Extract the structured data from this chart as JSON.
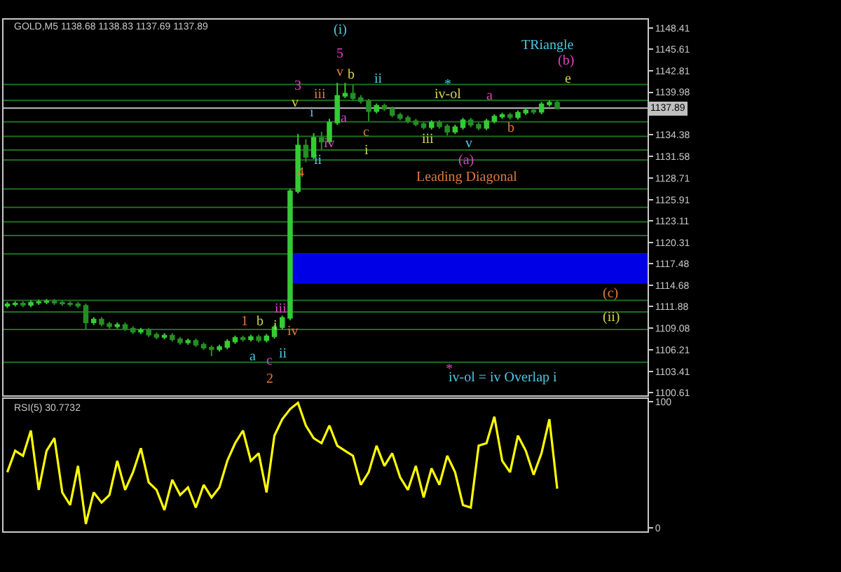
{
  "chart_data": [
    {
      "type": "candlestick",
      "categories": [
        null,
        null,
        null,
        null,
        null,
        null,
        null,
        null,
        null,
        null,
        null,
        null,
        null,
        null,
        null,
        null,
        null,
        null,
        null,
        null,
        null,
        null,
        null,
        null,
        null,
        null,
        null,
        null,
        null,
        null,
        null,
        null,
        null,
        null,
        null,
        null,
        null,
        null,
        null,
        null,
        null,
        null,
        null,
        null,
        null,
        null,
        null,
        null,
        null,
        null,
        null,
        null,
        null,
        null,
        null,
        null,
        null,
        null,
        null,
        null,
        null,
        null,
        null,
        null,
        null,
        null,
        null,
        null,
        null,
        null,
        null,
        null,
        null,
        null,
        null,
        null,
        null,
        null,
        null,
        null,
        null,
        null
      ],
      "tick_labels": "y",
      "grid": false,
      "ylim": [
        1100.3,
        1149.5
      ],
      "yticks": [
        1100.61,
        1103.41,
        1106.21,
        1109.08,
        1111.88,
        1114.68,
        1117.48,
        1120.31,
        1123.11,
        1125.91,
        1128.71,
        1131.58,
        1134.38,
        1139.98,
        1142.81,
        1145.61,
        1148.41
      ],
      "series": [
        {
          "colors": [
            "#32cd32",
            "#32cd32",
            "#238f23",
            "#32cd32",
            "#32cd32",
            "#32cd32",
            "#238f23",
            "#238f23",
            "#238f23",
            "#238f23",
            "#238f23",
            "#32cd32",
            "#238f23",
            "#238f23",
            "#32cd32",
            "#238f23",
            "#238f23",
            "#32cd32",
            "#238f23",
            "#238f23",
            "#32cd32",
            "#238f23",
            "#238f23",
            "#32cd32",
            "#238f23",
            "#238f23",
            "#238f23",
            "#32cd32",
            "#32cd32",
            "#32cd32",
            "#238f23",
            "#32cd32",
            "#238f23",
            "#32cd32",
            "#32cd32",
            "#32cd32",
            "#32cd32",
            "#32cd32",
            "#238f23",
            "#32cd32",
            "#238f23",
            "#32cd32",
            "#32cd32",
            "#32cd32",
            "#238f23",
            "#238f23",
            "#238f23",
            "#32cd32",
            "#238f23",
            "#238f23",
            "#238f23",
            "#238f23",
            "#238f23",
            "#238f23",
            "#32cd32",
            "#238f23",
            "#238f23",
            "#32cd32",
            "#32cd32",
            "#238f23",
            "#238f23",
            "#32cd32",
            "#32cd32",
            "#32cd32",
            "#238f23",
            "#32cd32",
            "#32cd32",
            "#238f23",
            "#32cd32",
            "#32cd32",
            "#238f23",
            null,
            null,
            null,
            null,
            null,
            null,
            null,
            null,
            null,
            null,
            null
          ],
          "ohlc": [
            [
              1112.0,
              1112.5,
              1111.7,
              1112.2
            ],
            [
              1112.2,
              1112.6,
              1111.9,
              1112.3
            ],
            [
              1112.3,
              1112.6,
              1111.8,
              1112.1
            ],
            [
              1112.1,
              1112.7,
              1111.8,
              1112.4
            ],
            [
              1112.4,
              1112.8,
              1112.1,
              1112.5
            ],
            [
              1112.5,
              1112.9,
              1112.2,
              1112.6
            ],
            [
              1112.6,
              1112.9,
              1112.1,
              1112.4
            ],
            [
              1112.4,
              1112.7,
              1112.0,
              1112.3
            ],
            [
              1112.3,
              1112.6,
              1111.9,
              1112.2
            ],
            [
              1112.2,
              1112.5,
              1111.7,
              1112.0
            ],
            [
              1112.0,
              1112.3,
              1108.9,
              1109.8
            ],
            [
              1109.8,
              1110.5,
              1109.5,
              1110.2
            ],
            [
              1110.2,
              1110.5,
              1109.3,
              1109.6
            ],
            [
              1109.6,
              1109.9,
              1109.0,
              1109.3
            ],
            [
              1109.3,
              1109.8,
              1109.0,
              1109.5
            ],
            [
              1109.5,
              1109.8,
              1108.7,
              1109.0
            ],
            [
              1109.0,
              1109.3,
              1108.3,
              1108.6
            ],
            [
              1108.6,
              1109.1,
              1108.3,
              1108.8
            ],
            [
              1108.8,
              1109.1,
              1107.9,
              1108.2
            ],
            [
              1108.2,
              1108.5,
              1107.6,
              1107.9
            ],
            [
              1107.9,
              1108.4,
              1107.6,
              1108.1
            ],
            [
              1108.1,
              1108.4,
              1107.3,
              1107.6
            ],
            [
              1107.6,
              1107.9,
              1106.9,
              1107.2
            ],
            [
              1107.2,
              1107.7,
              1106.9,
              1107.4
            ],
            [
              1107.4,
              1107.7,
              1106.6,
              1106.9
            ],
            [
              1106.9,
              1107.2,
              1106.2,
              1106.5
            ],
            [
              1106.5,
              1106.8,
              1105.4,
              1106.3
            ],
            [
              1106.3,
              1106.9,
              1106.0,
              1106.6
            ],
            [
              1106.6,
              1107.6,
              1106.3,
              1107.3
            ],
            [
              1107.3,
              1108.1,
              1107.0,
              1107.8
            ],
            [
              1107.8,
              1108.1,
              1107.3,
              1107.6
            ],
            [
              1107.6,
              1108.2,
              1107.3,
              1107.9
            ],
            [
              1107.9,
              1108.2,
              1107.2,
              1107.5
            ],
            [
              1107.5,
              1108.3,
              1107.2,
              1108.0
            ],
            [
              1108.0,
              1109.5,
              1107.7,
              1109.2
            ],
            [
              1109.2,
              1110.7,
              1108.9,
              1110.4
            ],
            [
              1110.4,
              1127.3,
              1110.1,
              1127.0
            ],
            [
              1127.0,
              1134.5,
              1126.7,
              1133.0
            ],
            [
              1133.0,
              1133.8,
              1130.8,
              1131.5
            ],
            [
              1131.5,
              1134.6,
              1131.2,
              1134.0
            ],
            [
              1134.0,
              1134.8,
              1132.5,
              1133.5
            ],
            [
              1133.5,
              1136.5,
              1133.2,
              1136.0
            ],
            [
              1136.0,
              1141.2,
              1135.7,
              1139.5
            ],
            [
              1139.5,
              1141.2,
              1139.2,
              1139.8
            ],
            [
              1139.8,
              1141.0,
              1138.9,
              1139.2
            ],
            [
              1139.2,
              1139.6,
              1138.5,
              1138.8
            ],
            [
              1138.8,
              1139.1,
              1136.2,
              1137.5
            ],
            [
              1137.5,
              1138.5,
              1137.2,
              1138.2
            ],
            [
              1138.2,
              1138.5,
              1137.5,
              1137.8
            ],
            [
              1137.8,
              1138.1,
              1136.7,
              1137.0
            ],
            [
              1137.0,
              1137.3,
              1136.3,
              1136.6
            ],
            [
              1136.6,
              1136.9,
              1135.9,
              1136.2
            ],
            [
              1136.2,
              1136.5,
              1135.5,
              1135.8
            ],
            [
              1135.8,
              1136.1,
              1135.1,
              1135.4
            ],
            [
              1135.4,
              1136.3,
              1135.1,
              1136.0
            ],
            [
              1136.0,
              1136.3,
              1135.2,
              1135.5
            ],
            [
              1135.5,
              1135.8,
              1134.3,
              1134.8
            ],
            [
              1134.8,
              1135.7,
              1134.5,
              1135.4
            ],
            [
              1135.4,
              1136.6,
              1135.1,
              1136.3
            ],
            [
              1136.3,
              1136.6,
              1135.4,
              1135.7
            ],
            [
              1135.7,
              1136.0,
              1135.0,
              1135.3
            ],
            [
              1135.3,
              1136.5,
              1135.0,
              1136.2
            ],
            [
              1136.2,
              1137.1,
              1135.9,
              1136.8
            ],
            [
              1136.8,
              1137.3,
              1136.5,
              1137.0
            ],
            [
              1137.0,
              1137.3,
              1136.4,
              1136.7
            ],
            [
              1136.7,
              1137.6,
              1136.4,
              1137.3
            ],
            [
              1137.3,
              1137.9,
              1137.0,
              1137.6
            ],
            [
              1137.6,
              1137.9,
              1137.1,
              1137.4
            ],
            [
              1137.4,
              1138.7,
              1137.1,
              1138.4
            ],
            [
              1138.4,
              1138.9,
              1138.1,
              1138.6
            ],
            [
              1138.6,
              1138.9,
              1137.7,
              1137.9
            ],
            null,
            null,
            null,
            null,
            null,
            null,
            null,
            null,
            null,
            null,
            null
          ]
        }
      ],
      "ref_lines": [
        {
          "axis": "y",
          "value": 1137.89,
          "label": "1137.89",
          "color": "#c0c0c0"
        },
        {
          "axis": "y",
          "value": 1141.0,
          "color": "#1f6f1f"
        },
        {
          "axis": "y",
          "value": 1138.9,
          "color": "#1f6f1f"
        },
        {
          "axis": "y",
          "value": 1136.1,
          "color": "#1f6f1f"
        },
        {
          "axis": "y",
          "value": 1134.2,
          "color": "#1f6f1f"
        },
        {
          "axis": "y",
          "value": 1132.4,
          "color": "#1f6f1f"
        },
        {
          "axis": "y",
          "value": 1131.1,
          "color": "#1f6f1f"
        },
        {
          "axis": "y",
          "value": 1127.3,
          "color": "#1f6f1f"
        },
        {
          "axis": "y",
          "value": 1124.9,
          "color": "#1f6f1f"
        },
        {
          "axis": "y",
          "value": 1123.0,
          "color": "#1f6f1f"
        },
        {
          "axis": "y",
          "value": 1121.2,
          "color": "#1f6f1f"
        },
        {
          "axis": "y",
          "value": 1118.8,
          "color": "#1f6f1f"
        },
        {
          "axis": "y",
          "value": 1112.7,
          "color": "#1f6f1f"
        },
        {
          "axis": "y",
          "value": 1111.2,
          "color": "#1f6f1f"
        },
        {
          "axis": "y",
          "value": 1108.9,
          "color": "#1f6f1f"
        },
        {
          "axis": "y",
          "value": 1104.6,
          "color": "#1f6f1f"
        }
      ],
      "bands": [
        {
          "axis": "y",
          "from": 1114.9,
          "to": 1118.9,
          "color": "#0000ff"
        }
      ],
      "annotations": [
        "GOLD,M5 1138.68 1138.83 1137.69 1137.89",
        "(i)",
        "5",
        "v",
        "b",
        "ii",
        "3",
        "iii",
        "v",
        "i",
        "a",
        "c",
        "i",
        "ii",
        "iv",
        "4",
        "iii",
        "v",
        "(a)",
        "Leading Diagonal",
        "iv-ol",
        "*",
        "a",
        "b",
        "e",
        "TRiangle",
        "(b)",
        "(c)",
        "(ii)",
        "iv-ol = iv Overlap i",
        "*",
        "1",
        "b",
        "a",
        "c",
        "2",
        "i",
        "ii",
        "iii",
        "iv"
      ]
    },
    {
      "type": "line",
      "categories": [
        null,
        null,
        null,
        null,
        null,
        null,
        null,
        null,
        null,
        null,
        null,
        null,
        null,
        null,
        null,
        null,
        null,
        null,
        null,
        null,
        null,
        null,
        null,
        null,
        null,
        null,
        null,
        null,
        null,
        null,
        null,
        null,
        null,
        null,
        null,
        null,
        null,
        null,
        null,
        null,
        null,
        null,
        null,
        null,
        null,
        null,
        null,
        null,
        null,
        null,
        null,
        null,
        null,
        null,
        null,
        null,
        null,
        null,
        null,
        null,
        null,
        null,
        null,
        null,
        null,
        null,
        null,
        null,
        null,
        null,
        null,
        null,
        null,
        null,
        null,
        null,
        null,
        null,
        null,
        null,
        null,
        null
      ],
      "tick_labels": "y",
      "grid": false,
      "ylim": [
        -3,
        102
      ],
      "yticks": [
        0,
        100
      ],
      "series": [
        {
          "color": "#ffff00",
          "values": [
            44,
            61,
            57,
            77,
            30,
            61,
            71,
            28,
            18,
            49,
            3,
            28,
            20,
            26,
            53,
            30,
            44,
            63,
            36,
            30,
            14,
            38,
            26,
            32,
            16,
            34,
            24,
            32,
            53,
            67,
            77,
            53,
            59,
            28,
            73,
            86,
            94,
            99,
            81,
            71,
            67,
            81,
            65,
            61,
            57,
            34,
            44,
            65,
            49,
            59,
            40,
            30,
            49,
            24,
            47,
            34,
            57,
            44,
            18,
            16,
            65,
            67,
            88,
            53,
            44,
            73,
            61,
            42,
            59,
            86,
            31,
            null,
            null,
            null,
            null,
            null,
            null,
            null,
            null,
            null,
            null,
            null
          ]
        }
      ],
      "annotations": [
        "RSI(5) 30.7732"
      ]
    }
  ]
}
